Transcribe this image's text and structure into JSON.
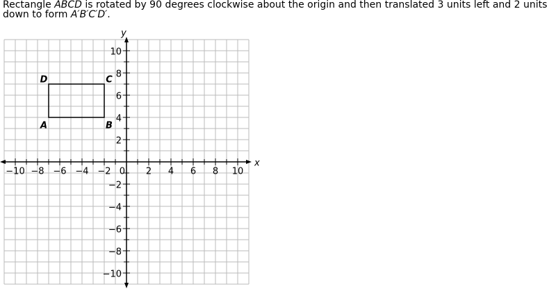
{
  "question": {
    "lines": [
      [
        "Rectangle ",
        "ABCD",
        " is rotated by 90 degrees clockwise about the origin and then translated 3 units left and 2 units"
      ],
      [
        "down to form ",
        "A′B′C′D′",
        "."
      ]
    ]
  },
  "graph": {
    "x_label": "x",
    "y_label": "y",
    "origin_label": "0",
    "xlim": [
      -11,
      11
    ],
    "ylim": [
      -11,
      11
    ],
    "grid_step": 1,
    "xticks": [
      {
        "value": -10,
        "label": "−10"
      },
      {
        "value": -8,
        "label": "−8"
      },
      {
        "value": -6,
        "label": "−6"
      },
      {
        "value": -4,
        "label": "−4"
      },
      {
        "value": -2,
        "label": "−2"
      },
      2,
      4,
      6,
      8,
      10
    ],
    "yticks": [
      10,
      8,
      6,
      4,
      2,
      {
        "value": -2,
        "label": "−2"
      },
      {
        "value": -4,
        "label": "−4"
      },
      {
        "value": -6,
        "label": "−6"
      },
      {
        "value": -8,
        "label": "−8"
      },
      {
        "value": -10,
        "label": "−10"
      }
    ],
    "points": [
      {
        "label": "A",
        "x": -7,
        "y": 4,
        "label_position": "below-left"
      },
      {
        "label": "B",
        "x": -2,
        "y": 4,
        "label_position": "below-right"
      },
      {
        "label": "C",
        "x": -2,
        "y": 7,
        "label_position": "above-right"
      },
      {
        "label": "D",
        "x": -7,
        "y": 7,
        "label_position": "above-left"
      }
    ]
  }
}
